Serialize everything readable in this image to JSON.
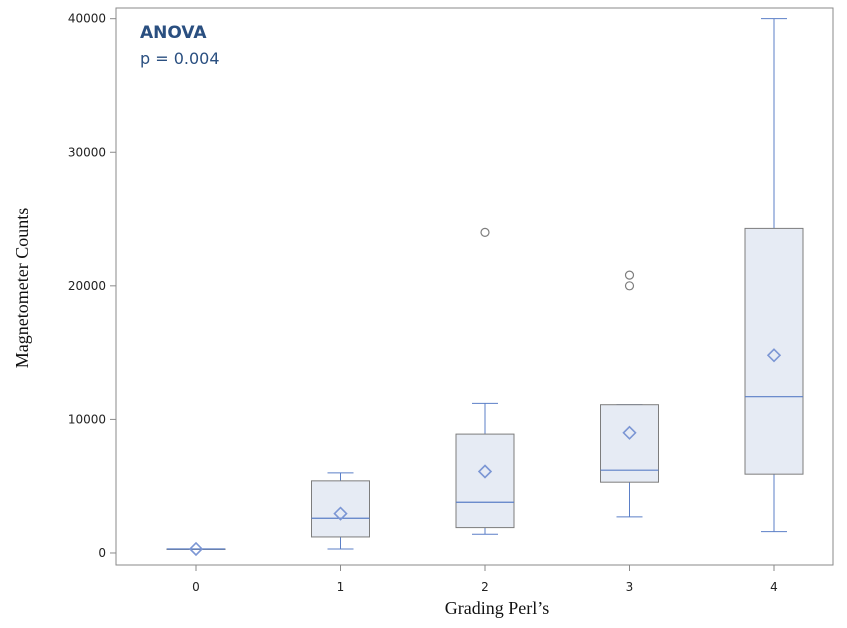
{
  "chart_data": {
    "type": "box",
    "xlabel": "Grading Perl’s",
    "ylabel": "Magnetometer Counts",
    "ylim": [
      -900,
      40800
    ],
    "yticks": [
      0,
      10000,
      20000,
      30000,
      40000
    ],
    "grid": false,
    "annotation": {
      "title": "ANOVA",
      "text": "p = 0.004"
    },
    "categories": [
      "0",
      "1",
      "2",
      "3",
      "4"
    ],
    "boxes": [
      {
        "category": "0",
        "whisker_low": 300,
        "q1": 300,
        "median": 300,
        "q3": 300,
        "whisker_high": 300,
        "mean": 300,
        "outliers": []
      },
      {
        "category": "1",
        "whisker_low": 300,
        "q1": 1200,
        "median": 2600,
        "q3": 5400,
        "whisker_high": 6000,
        "mean": 2950,
        "outliers": []
      },
      {
        "category": "2",
        "whisker_low": 1400,
        "q1": 1900,
        "median": 3800,
        "q3": 8900,
        "whisker_high": 11200,
        "mean": 6100,
        "outliers": [
          24000
        ]
      },
      {
        "category": "3",
        "whisker_low": 2700,
        "q1": 5300,
        "median": 6200,
        "q3": 11100,
        "whisker_high": 11100,
        "mean": 9000,
        "outliers": [
          20000,
          20800
        ]
      },
      {
        "category": "4",
        "whisker_low": 1600,
        "q1": 5900,
        "median": 11700,
        "q3": 24300,
        "whisker_high": 40000,
        "mean": 14800,
        "outliers": []
      }
    ],
    "colors": {
      "box_fill": "#e6ebf4",
      "box_edge": "#7d7d7d",
      "median": "#5b7fc7",
      "whisker": "#5b7fc7",
      "mean_marker": "#7b96d4",
      "outlier": "#7d7d7d",
      "frame": "#8a8a8a",
      "annotation": "#2a4f80"
    }
  }
}
